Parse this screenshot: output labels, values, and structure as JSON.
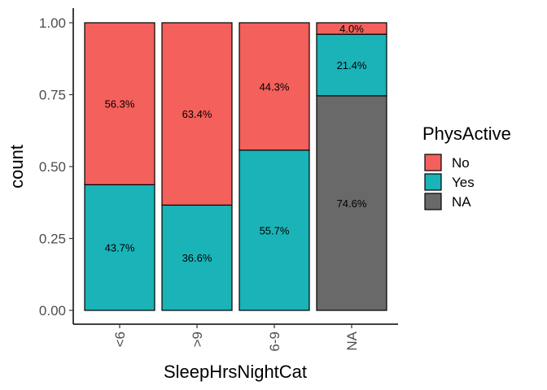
{
  "chart_data": {
    "type": "bar",
    "stacked": true,
    "categories": [
      "<6",
      ">9",
      "6-9",
      "NA"
    ],
    "series": [
      {
        "name": "NA",
        "color": "#696969",
        "values": [
          0,
          0,
          0,
          0.746
        ],
        "labels": [
          "",
          "",
          "",
          "74.6%"
        ]
      },
      {
        "name": "Yes",
        "color": "#1AB3B8",
        "values": [
          0.437,
          0.366,
          0.557,
          0.214
        ],
        "labels": [
          "43.7%",
          "36.6%",
          "55.7%",
          "21.4%"
        ]
      },
      {
        "name": "No",
        "color": "#F4605B",
        "values": [
          0.563,
          0.634,
          0.443,
          0.04
        ],
        "labels": [
          "56.3%",
          "63.4%",
          "44.3%",
          "4.0%"
        ]
      }
    ],
    "xlabel": "SleepHrsNightCat",
    "ylabel": "count",
    "ylim": [
      0,
      1
    ],
    "yticks": [
      "0.00",
      "0.25",
      "0.50",
      "0.75",
      "1.00"
    ],
    "grid": false,
    "legend": {
      "title": "PhysActive",
      "position": "right",
      "entries": [
        {
          "label": "No",
          "color": "#F4605B"
        },
        {
          "label": "Yes",
          "color": "#1AB3B8"
        },
        {
          "label": "NA",
          "color": "#696969"
        }
      ]
    }
  }
}
